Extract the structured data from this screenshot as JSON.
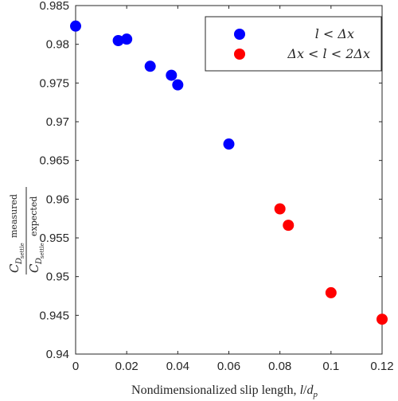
{
  "chart_data": {
    "type": "scatter",
    "xlabel": "Nondimensionalized slip length, l/d_p",
    "xlabel_text": "Nondimensionalized slip length, ",
    "xlabel_math_l": "l",
    "xlabel_math_slash": "/",
    "xlabel_math_d": "d",
    "xlabel_math_sub": "p",
    "ylabel": "C_D_settle measured / C_D_settle expected",
    "ylabel_parts": {
      "C": "C",
      "D": "D",
      "settle": "settle",
      "measured": "measured",
      "expected": "expected"
    },
    "xlim": [
      0,
      0.12
    ],
    "ylim": [
      0.94,
      0.985
    ],
    "xticks": [
      "0",
      "0.02",
      "0.04",
      "0.06",
      "0.08",
      "0.1",
      "0.12"
    ],
    "yticks": [
      "0.94",
      "0.945",
      "0.95",
      "0.955",
      "0.96",
      "0.965",
      "0.97",
      "0.975",
      "0.98",
      "0.985"
    ],
    "grid": false,
    "legend_position": "top-right",
    "series": [
      {
        "name": "l < Δx",
        "color": "#0000ff",
        "points": [
          {
            "x": 0.0,
            "y": 0.98235
          },
          {
            "x": 0.0167,
            "y": 0.98048
          },
          {
            "x": 0.02,
            "y": 0.98067
          },
          {
            "x": 0.0292,
            "y": 0.97716
          },
          {
            "x": 0.0375,
            "y": 0.976
          },
          {
            "x": 0.04,
            "y": 0.97476
          },
          {
            "x": 0.06,
            "y": 0.96712
          }
        ]
      },
      {
        "name": "Δx < l < 2Δx",
        "color": "#ff0000",
        "points": [
          {
            "x": 0.08,
            "y": 0.95875
          },
          {
            "x": 0.0833,
            "y": 0.95663
          },
          {
            "x": 0.1,
            "y": 0.94792
          },
          {
            "x": 0.12,
            "y": 0.9445
          }
        ]
      }
    ]
  }
}
